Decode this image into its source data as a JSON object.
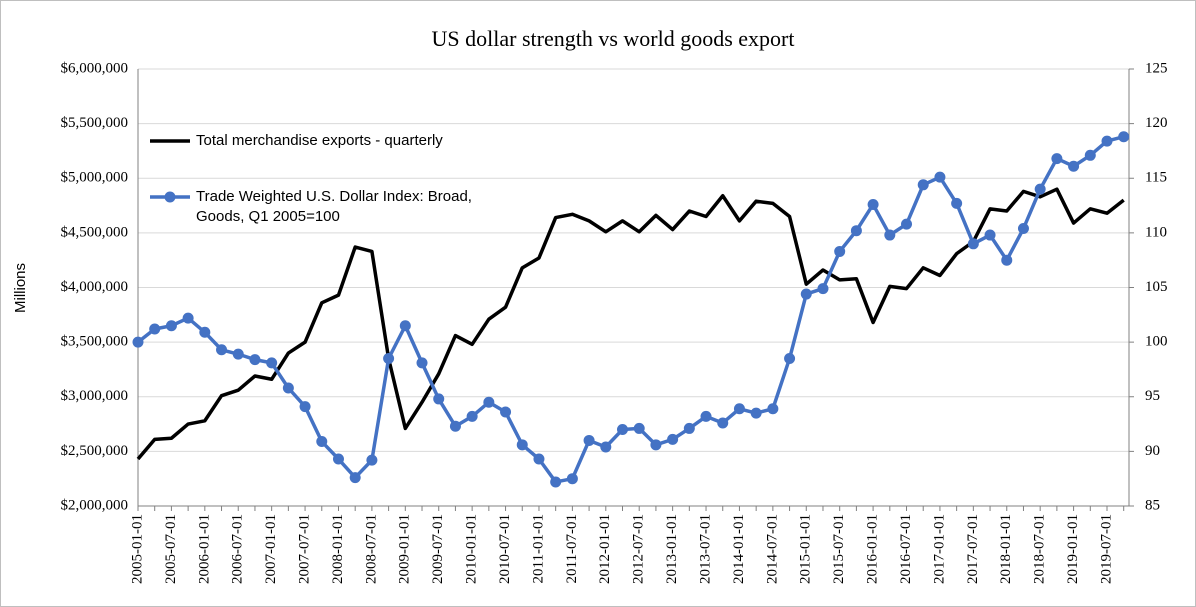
{
  "chart_data": {
    "type": "line",
    "title": "US dollar strength vs world goods export",
    "y_label": "Millions",
    "categories": [
      "2005-01-01",
      null,
      "2005-07-01",
      null,
      "2006-01-01",
      null,
      "2006-07-01",
      null,
      "2007-01-01",
      null,
      "2007-07-01",
      null,
      "2008-01-01",
      null,
      "2008-07-01",
      null,
      "2009-01-01",
      null,
      "2009-07-01",
      null,
      "2010-01-01",
      null,
      "2010-07-01",
      null,
      "2011-01-01",
      null,
      "2011-07-01",
      null,
      "2012-01-01",
      null,
      "2012-07-01",
      null,
      "2013-01-01",
      null,
      "2013-07-01",
      null,
      "2014-01-01",
      null,
      "2014-07-01",
      null,
      "2015-01-01",
      null,
      "2015-07-01",
      null,
      "2016-01-01",
      null,
      "2016-07-01",
      null,
      "2017-01-01",
      null,
      "2017-07-01",
      null,
      "2018-01-01",
      null,
      "2018-07-01",
      null,
      "2019-01-01",
      null,
      "2019-07-01",
      null
    ],
    "series": [
      {
        "name": "Total merchandise exports - quarterly",
        "color": "#000000",
        "axis": "y",
        "values": [
          2430000,
          2610000,
          2620000,
          2750000,
          2780000,
          3010000,
          3060000,
          3190000,
          3160000,
          3400000,
          3500000,
          3860000,
          3930000,
          4370000,
          4330000,
          3350000,
          2710000,
          2950000,
          3210000,
          3560000,
          3480000,
          3710000,
          3820000,
          4180000,
          4270000,
          4640000,
          4670000,
          4610000,
          4510000,
          4610000,
          4510000,
          4660000,
          4530000,
          4700000,
          4650000,
          4840000,
          4610000,
          4790000,
          4770000,
          4650000,
          4030000,
          4160000,
          4070000,
          4080000,
          3680000,
          4010000,
          3990000,
          4180000,
          4110000,
          4310000,
          4420000,
          4720000,
          4700000,
          4880000,
          4830000,
          4900000,
          4590000,
          4720000,
          4680000,
          4800000
        ]
      },
      {
        "name": "Trade Weighted U.S. Dollar Index: Broad, Goods, Q1 2005=100",
        "color": "#4472c4",
        "axis": "y2",
        "marker": "circle",
        "values": [
          100,
          101.2,
          101.5,
          102.2,
          100.9,
          99.3,
          98.9,
          98.4,
          98.1,
          95.8,
          94.1,
          90.9,
          89.3,
          87.6,
          89.2,
          98.5,
          101.5,
          98.1,
          94.8,
          92.3,
          93.2,
          94.5,
          93.6,
          90.6,
          89.3,
          87.2,
          87.5,
          91.0,
          90.4,
          92.0,
          92.1,
          90.6,
          91.1,
          92.1,
          93.2,
          92.6,
          93.9,
          93.5,
          93.9,
          98.5,
          104.4,
          104.9,
          108.3,
          110.2,
          112.6,
          109.8,
          110.8,
          114.4,
          115.1,
          112.7,
          109.0,
          109.8,
          107.5,
          110.4,
          114.0,
          116.8,
          116.1,
          117.1,
          118.4,
          118.8
        ]
      }
    ],
    "ylim": [
      2000000,
      6000000
    ],
    "yticks": [
      {
        "value": 2000000,
        "label": "$2,000,000"
      },
      {
        "value": 2500000,
        "label": "$2,500,000"
      },
      {
        "value": 3000000,
        "label": "$3,000,000"
      },
      {
        "value": 3500000,
        "label": "$3,500,000"
      },
      {
        "value": 4000000,
        "label": "$4,000,000"
      },
      {
        "value": 4500000,
        "label": "$4,500,000"
      },
      {
        "value": 5000000,
        "label": "$5,000,000"
      },
      {
        "value": 5500000,
        "label": "$5,500,000"
      },
      {
        "value": 6000000,
        "label": "$6,000,000"
      }
    ],
    "y2lim": [
      85,
      125
    ],
    "y2ticks": [
      85,
      90,
      95,
      100,
      105,
      110,
      115,
      120,
      125
    ],
    "grid": true,
    "legend": "upper left"
  }
}
